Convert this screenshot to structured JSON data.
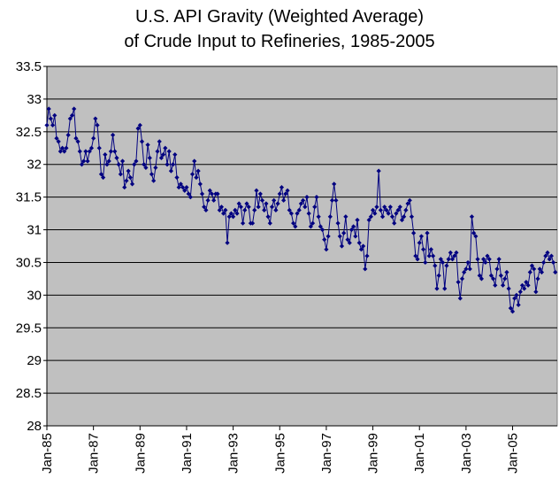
{
  "chart_data": {
    "type": "line",
    "title": [
      "U.S. API Gravity (Weighted Average)",
      "of Crude Input to Refineries, 1985-2005"
    ],
    "categories": [
      "Jan-85",
      null,
      null,
      null,
      null,
      null,
      null,
      null,
      null,
      null,
      null,
      null,
      null,
      null,
      null,
      null,
      null,
      null,
      null,
      null,
      null,
      null,
      null,
      null,
      "Jan-87",
      null,
      null,
      null,
      null,
      null,
      null,
      null,
      null,
      null,
      null,
      null,
      null,
      null,
      null,
      null,
      null,
      null,
      null,
      null,
      null,
      null,
      null,
      null,
      "Jan-89",
      null,
      null,
      null,
      null,
      null,
      null,
      null,
      null,
      null,
      null,
      null,
      null,
      null,
      null,
      null,
      null,
      null,
      null,
      null,
      null,
      null,
      null,
      null,
      "Jan-91",
      null,
      null,
      null,
      null,
      null,
      null,
      null,
      null,
      null,
      null,
      null,
      null,
      null,
      null,
      null,
      null,
      null,
      null,
      null,
      null,
      null,
      null,
      null,
      "Jan-93",
      null,
      null,
      null,
      null,
      null,
      null,
      null,
      null,
      null,
      null,
      null,
      null,
      null,
      null,
      null,
      null,
      null,
      null,
      null,
      null,
      null,
      null,
      null,
      "Jan-95",
      null,
      null,
      null,
      null,
      null,
      null,
      null,
      null,
      null,
      null,
      null,
      null,
      null,
      null,
      null,
      null,
      null,
      null,
      null,
      null,
      null,
      null,
      null,
      "Jan-97",
      null,
      null,
      null,
      null,
      null,
      null,
      null,
      null,
      null,
      null,
      null,
      null,
      null,
      null,
      null,
      null,
      null,
      null,
      null,
      null,
      null,
      null,
      null,
      "Jan-99",
      null,
      null,
      null,
      null,
      null,
      null,
      null,
      null,
      null,
      null,
      null,
      null,
      null,
      null,
      null,
      null,
      null,
      null,
      null,
      null,
      null,
      null,
      null,
      "Jan-01",
      null,
      null,
      null,
      null,
      null,
      null,
      null,
      null,
      null,
      null,
      null,
      null,
      null,
      null,
      null,
      null,
      null,
      null,
      null,
      null,
      null,
      null,
      null,
      "Jan-03",
      null,
      null,
      null,
      null,
      null,
      null,
      null,
      null,
      null,
      null,
      null,
      null,
      null,
      null,
      null,
      null,
      null,
      null,
      null,
      null,
      null,
      null,
      null,
      "Jan-05",
      null,
      null,
      null,
      null,
      null,
      null,
      null,
      null,
      null,
      null,
      null,
      null,
      null,
      null,
      null,
      null,
      null,
      null,
      null,
      null,
      null,
      null
    ],
    "series": [
      {
        "color": "#000080",
        "values": [
          32.6,
          32.85,
          32.7,
          32.6,
          32.75,
          32.4,
          32.35,
          32.2,
          32.25,
          32.2,
          32.25,
          32.45,
          32.7,
          32.75,
          32.85,
          32.4,
          32.35,
          32.2,
          32.0,
          32.05,
          32.2,
          32.05,
          32.2,
          32.25,
          32.4,
          32.7,
          32.6,
          32.25,
          31.85,
          31.8,
          32.15,
          32.0,
          32.05,
          32.2,
          32.45,
          32.2,
          32.1,
          32.0,
          31.85,
          32.05,
          31.65,
          31.75,
          31.9,
          31.8,
          31.7,
          32.0,
          32.05,
          32.55,
          32.6,
          32.35,
          32.0,
          31.95,
          32.3,
          32.1,
          31.85,
          31.75,
          31.95,
          32.2,
          32.35,
          32.1,
          32.15,
          32.25,
          32.0,
          32.2,
          31.9,
          32.0,
          32.15,
          31.8,
          31.65,
          31.7,
          31.65,
          31.6,
          31.65,
          31.55,
          31.5,
          31.85,
          32.05,
          31.8,
          31.9,
          31.7,
          31.55,
          31.35,
          31.3,
          31.45,
          31.6,
          31.55,
          31.45,
          31.55,
          31.55,
          31.3,
          31.35,
          31.25,
          31.3,
          30.8,
          31.2,
          31.25,
          31.2,
          31.3,
          31.25,
          31.4,
          31.35,
          31.1,
          31.3,
          31.4,
          31.35,
          31.1,
          31.1,
          31.3,
          31.6,
          31.35,
          31.55,
          31.45,
          31.3,
          31.4,
          31.2,
          31.1,
          31.35,
          31.45,
          31.3,
          31.4,
          31.55,
          31.65,
          31.45,
          31.55,
          31.6,
          31.3,
          31.25,
          31.1,
          31.05,
          31.25,
          31.3,
          31.4,
          31.45,
          31.35,
          31.5,
          31.25,
          31.05,
          31.1,
          31.35,
          31.5,
          31.2,
          31.05,
          31.0,
          30.85,
          30.7,
          30.9,
          31.2,
          31.45,
          31.7,
          31.45,
          31.1,
          30.9,
          30.75,
          30.95,
          31.2,
          30.85,
          30.8,
          31.0,
          31.05,
          30.9,
          31.15,
          30.8,
          30.7,
          30.75,
          30.4,
          30.6,
          31.15,
          31.2,
          31.3,
          31.25,
          31.35,
          31.9,
          31.3,
          31.2,
          31.35,
          31.3,
          31.25,
          31.35,
          31.2,
          31.1,
          31.25,
          31.3,
          31.35,
          31.15,
          31.2,
          31.3,
          31.4,
          31.45,
          31.2,
          30.95,
          30.6,
          30.55,
          30.8,
          30.9,
          30.7,
          30.5,
          30.95,
          30.6,
          30.7,
          30.6,
          30.45,
          30.1,
          30.3,
          30.55,
          30.5,
          30.1,
          30.45,
          30.55,
          30.65,
          30.55,
          30.6,
          30.65,
          30.2,
          29.95,
          30.25,
          30.35,
          30.4,
          30.5,
          30.4,
          31.2,
          30.95,
          30.9,
          30.55,
          30.3,
          30.25,
          30.55,
          30.5,
          30.6,
          30.55,
          30.3,
          30.25,
          30.15,
          30.4,
          30.55,
          30.3,
          30.15,
          30.25,
          30.35,
          30.1,
          29.8,
          29.75,
          29.95,
          30.0,
          29.85,
          30.05,
          30.15,
          30.1,
          30.2,
          30.15,
          30.35,
          30.45,
          30.4,
          30.05,
          30.25,
          30.4,
          30.35,
          30.5,
          30.6,
          30.65,
          30.55,
          30.6,
          30.5,
          30.35
        ]
      }
    ],
    "ylim": [
      28,
      33.5
    ],
    "yticks": [
      28,
      28.5,
      29,
      29.5,
      30,
      30.5,
      31,
      31.5,
      32,
      32.5,
      33,
      33.5
    ],
    "grid": true,
    "plot_background": "#c0c0c0"
  }
}
